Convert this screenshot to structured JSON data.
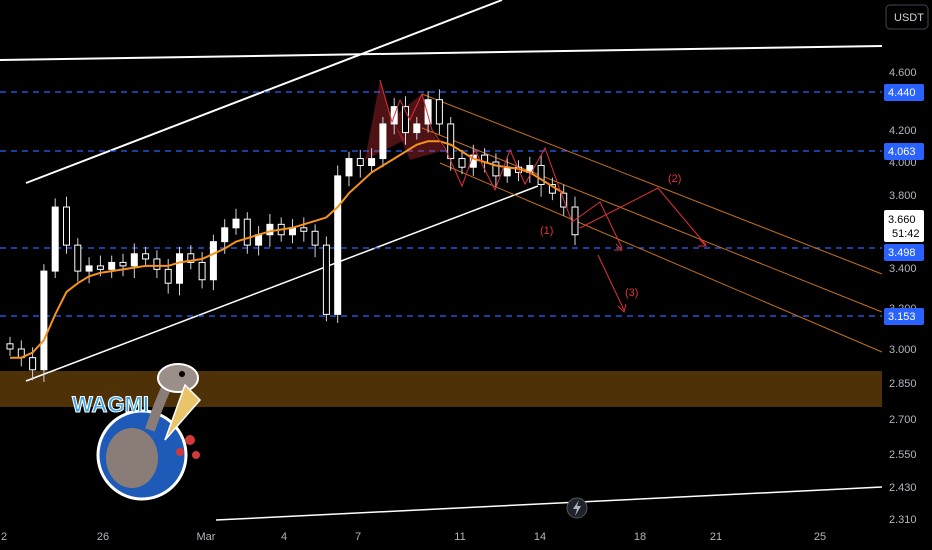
{
  "currency_button": "USDT",
  "colors": {
    "background": "#000000",
    "level_line": "#2962ff",
    "level_badge": "#2962ff",
    "demand_zone": "#5c3a08",
    "moving_average": "#f7931a",
    "channel_orange": "#c0701a",
    "pattern_red": "#e0303a",
    "price_badge": "#ffffff"
  },
  "chart_data": {
    "type": "candlestick",
    "title": "",
    "y_ticks": [
      "4.600",
      "4.200",
      "4.000",
      "3.800",
      "3.400",
      "3.200",
      "3.000",
      "2.850",
      "2.700",
      "2.550",
      "2.430",
      "2.310"
    ],
    "x_ticks": [
      "2",
      "26",
      "Mar",
      "4",
      "7",
      "11",
      "14",
      "18",
      "21",
      "25"
    ],
    "levels": [
      {
        "value": "4.440",
        "style": "dashed"
      },
      {
        "value": "4.063",
        "style": "dashed"
      },
      {
        "value": "3.498",
        "style": "dashed"
      },
      {
        "value": "3.153",
        "style": "dashed"
      }
    ],
    "current_price": {
      "value": "3.660",
      "countdown": "51:42"
    },
    "demand_zone": {
      "top": 2.88,
      "bottom": 2.78
    },
    "annotations": [
      "(1)",
      "(2)",
      "(3)"
    ],
    "series": [
      {
        "type": "candles",
        "values": [
          3.0,
          2.95,
          2.88,
          3.45,
          3.82,
          3.6,
          3.45,
          3.48,
          3.46,
          3.5,
          3.48,
          3.55,
          3.52,
          3.46,
          3.38,
          3.55,
          3.5,
          3.4,
          3.62,
          3.7,
          3.75,
          3.6,
          3.66,
          3.72,
          3.66,
          3.7,
          3.68,
          3.6,
          3.2,
          4.0,
          4.1,
          4.06,
          4.1,
          4.3,
          4.4,
          4.25,
          4.3,
          4.44,
          4.3,
          4.1,
          4.05,
          4.12,
          4.08,
          4.0,
          4.05,
          4.02,
          4.06,
          3.95,
          3.9,
          3.82,
          3.66
        ]
      },
      {
        "type": "moving-average",
        "values": [
          2.95,
          2.95,
          2.98,
          3.05,
          3.2,
          3.33,
          3.38,
          3.42,
          3.44,
          3.45,
          3.46,
          3.47,
          3.48,
          3.48,
          3.48,
          3.5,
          3.51,
          3.52,
          3.55,
          3.58,
          3.62,
          3.64,
          3.66,
          3.68,
          3.69,
          3.7,
          3.72,
          3.74,
          3.76,
          3.82,
          3.9,
          3.96,
          4.02,
          4.06,
          4.1,
          4.14,
          4.18,
          4.2,
          4.2,
          4.18,
          4.14,
          4.1,
          4.08,
          4.06,
          4.05,
          4.04,
          4.02,
          3.98,
          3.94,
          3.9
        ]
      }
    ]
  }
}
